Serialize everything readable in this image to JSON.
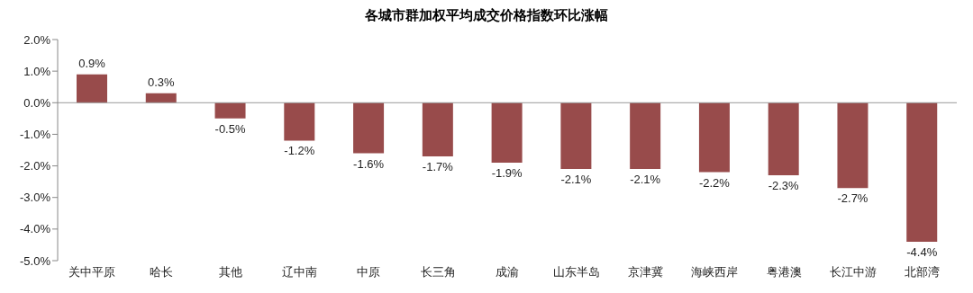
{
  "chart_data": {
    "type": "bar",
    "title": "各城市群加权平均成交价格指数环比涨幅",
    "categories": [
      "关中平原",
      "哈长",
      "其他",
      "辽中南",
      "中原",
      "长三角",
      "成渝",
      "山东半岛",
      "京津冀",
      "海峡西岸",
      "粤港澳",
      "长江中游",
      "北部湾"
    ],
    "values": [
      0.9,
      0.3,
      -0.5,
      -1.2,
      -1.6,
      -1.7,
      -1.9,
      -2.1,
      -2.1,
      -2.2,
      -2.3,
      -2.7,
      -4.4
    ],
    "value_labels": [
      "0.9%",
      "0.3%",
      "-0.5%",
      "-1.2%",
      "-1.6%",
      "-1.7%",
      "-1.9%",
      "-2.1%",
      "-2.1%",
      "-2.2%",
      "-2.3%",
      "-2.7%",
      "-4.4%"
    ],
    "color": "#984b4b",
    "ylim": [
      -5,
      2
    ],
    "yticks": [
      {
        "value": 2,
        "label": "2.0%"
      },
      {
        "value": 1,
        "label": "1.0%"
      },
      {
        "value": 0,
        "label": "0.0%"
      },
      {
        "value": -1,
        "label": "-1.0%"
      },
      {
        "value": -2,
        "label": "-2.0%"
      },
      {
        "value": -3,
        "label": "-3.0%"
      },
      {
        "value": -4,
        "label": "-4.0%"
      },
      {
        "value": -5,
        "label": "-5.0%"
      }
    ],
    "ref_lines": [
      {
        "axis": "y",
        "value": 0,
        "color": "#999999"
      }
    ],
    "grid": false,
    "legend": false
  }
}
